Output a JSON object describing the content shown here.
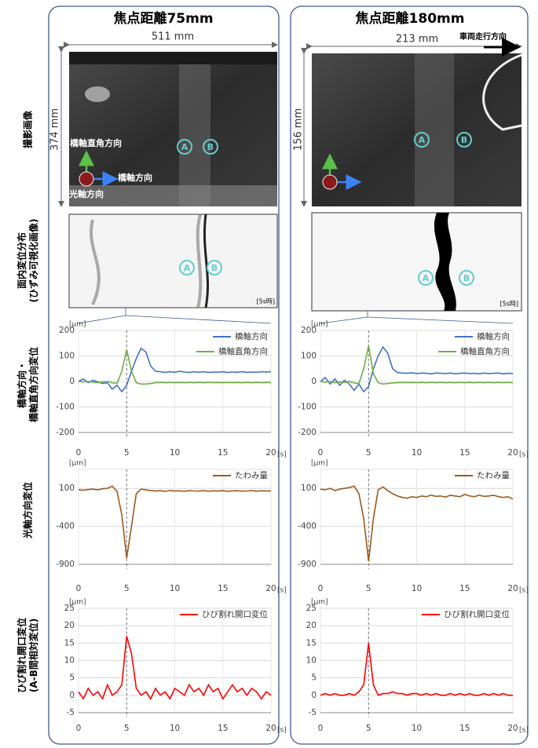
{
  "row_labels": [
    [
      "撮影画像"
    ],
    [
      "面内変位分布",
      "(ひずみ可視化画像)"
    ],
    [
      "橋軸方向・",
      "橋軸直角方向変位"
    ],
    [
      "光軸方向変位"
    ],
    [
      "ひび割れ開口変位",
      "(A-B間相対変位)"
    ]
  ],
  "columns": [
    {
      "title": "焦点距離75mm",
      "photo": {
        "width_label": "511 mm",
        "height_label": "374 mm",
        "direction_labels": [
          "橋軸直角方向",
          "橋軸方向",
          "光軸方向"
        ],
        "point_labels": [
          "A",
          "B"
        ]
      },
      "contour": {
        "point_labels": [
          "A",
          "B"
        ],
        "time_label": "[5s時]"
      },
      "chart_data": [
        {
          "type": "line",
          "x_unit": "[s]",
          "y_unit": "[μm]",
          "xlim": [
            0,
            20
          ],
          "xticks": [
            0,
            5,
            10,
            15,
            20
          ],
          "ylim": [
            -200,
            200
          ],
          "yticks": [
            -200,
            -100,
            0,
            100,
            200
          ],
          "grid": true,
          "marker_x": 5,
          "x": [
            0,
            0.5,
            1,
            1.5,
            2,
            2.5,
            3,
            3.5,
            4,
            4.5,
            5,
            5.5,
            6,
            6.5,
            7,
            7.5,
            8,
            8.5,
            9,
            9.5,
            10,
            10.5,
            11,
            11.5,
            12,
            12.5,
            13,
            13.5,
            14,
            14.5,
            15,
            15.5,
            16,
            16.5,
            17,
            17.5,
            18,
            18.5,
            19,
            19.5,
            20
          ],
          "series": [
            {
              "name": "橋軸方向",
              "color": "#4472c4",
              "values": [
                0,
                10,
                -5,
                5,
                -2,
                -8,
                -5,
                -30,
                -15,
                -40,
                -15,
                40,
                90,
                130,
                115,
                60,
                40,
                38,
                35,
                38,
                36,
                40,
                37,
                35,
                38,
                36,
                38,
                35,
                37,
                36,
                38,
                35,
                37,
                36,
                38,
                35,
                37,
                36,
                38,
                37,
                38
              ]
            },
            {
              "name": "橋軸直角方向",
              "color": "#70ad47",
              "values": [
                0,
                -2,
                0,
                -3,
                -5,
                -2,
                0,
                -5,
                -8,
                40,
                125,
                40,
                -5,
                -10,
                -10,
                -8,
                -5,
                -4,
                -5,
                -4,
                -5,
                -4,
                -5,
                -4,
                -5,
                -4,
                -5,
                -4,
                -5,
                -4,
                -5,
                -4,
                -5,
                -4,
                -5,
                -4,
                -5,
                -4,
                -5,
                -4,
                -5
              ]
            }
          ]
        },
        {
          "type": "line",
          "x_unit": "[s]",
          "y_unit": "[μm]",
          "xlim": [
            0,
            20
          ],
          "xticks": [
            0,
            5,
            10,
            15,
            20
          ],
          "ylim": [
            -900,
            350
          ],
          "yticks": [
            -900,
            -400,
            100
          ],
          "grid": true,
          "marker_x": 5,
          "x": [
            0,
            0.5,
            1,
            1.5,
            2,
            2.5,
            3,
            3.5,
            4,
            4.5,
            5,
            5.5,
            6,
            6.5,
            7,
            7.5,
            8,
            8.5,
            9,
            9.5,
            10,
            10.5,
            11,
            11.5,
            12,
            12.5,
            13,
            13.5,
            14,
            14.5,
            15,
            15.5,
            16,
            16.5,
            17,
            17.5,
            18,
            18.5,
            19,
            19.5,
            20
          ],
          "series": [
            {
              "name": "たわみ量",
              "color": "#9c5a1e",
              "values": [
                80,
                75,
                85,
                90,
                80,
                95,
                100,
                130,
                60,
                -250,
                -820,
                -400,
                30,
                90,
                80,
                70,
                65,
                70,
                60,
                72,
                65,
                68,
                62,
                70,
                66,
                64,
                70,
                63,
                68,
                65,
                70,
                62,
                67,
                69,
                64,
                66,
                70,
                63,
                68,
                65,
                67
              ]
            }
          ]
        },
        {
          "type": "line",
          "x_unit": "[s]",
          "y_unit": "[μm]",
          "xlim": [
            0,
            20
          ],
          "xticks": [
            0,
            5,
            10,
            15,
            20
          ],
          "ylim": [
            -5,
            25
          ],
          "yticks": [
            -5,
            0,
            5,
            10,
            15,
            20,
            25
          ],
          "grid": true,
          "marker_x": 5,
          "x": [
            0,
            0.5,
            1,
            1.5,
            2,
            2.5,
            3,
            3.5,
            4,
            4.5,
            5,
            5.5,
            6,
            6.5,
            7,
            7.5,
            8,
            8.5,
            9,
            9.5,
            10,
            10.5,
            11,
            11.5,
            12,
            12.5,
            13,
            13.5,
            14,
            14.5,
            15,
            15.5,
            16,
            16.5,
            17,
            17.5,
            18,
            18.5,
            19,
            19.5,
            20
          ],
          "series": [
            {
              "name": "ひび割れ開口変位",
              "color": "#ff0000",
              "values": [
                1,
                -1,
                2,
                0,
                1,
                -1,
                3,
                0,
                1,
                3,
                17,
                12,
                2,
                0,
                1,
                -1,
                2,
                0,
                1,
                -1,
                2,
                1,
                0,
                3,
                1,
                2,
                0,
                3,
                1,
                2,
                -1,
                1,
                3,
                1,
                2,
                0,
                2,
                1,
                -1,
                1,
                0
              ]
            }
          ]
        }
      ]
    },
    {
      "title": "焦点距離180mm",
      "photo": {
        "width_label": "213 mm",
        "height_label": "156 mm",
        "direction_labels": [
          "車両走行方向"
        ],
        "point_labels": [
          "A",
          "B"
        ]
      },
      "contour": {
        "point_labels": [
          "A",
          "B"
        ],
        "time_label": "[5s時]"
      },
      "chart_data": [
        {
          "type": "line",
          "x_unit": "[s]",
          "y_unit": "[μm]",
          "xlim": [
            0,
            20
          ],
          "xticks": [
            0,
            5,
            10,
            15,
            20
          ],
          "ylim": [
            -200,
            200
          ],
          "yticks": [
            -200,
            -100,
            0,
            100,
            200
          ],
          "grid": true,
          "marker_x": 5,
          "x": [
            0,
            0.5,
            1,
            1.5,
            2,
            2.5,
            3,
            3.5,
            4,
            4.5,
            5,
            5.5,
            6,
            6.5,
            7,
            7.5,
            8,
            8.5,
            9,
            9.5,
            10,
            10.5,
            11,
            11.5,
            12,
            12.5,
            13,
            13.5,
            14,
            14.5,
            15,
            15.5,
            16,
            16.5,
            17,
            17.5,
            18,
            18.5,
            19,
            19.5,
            20
          ],
          "series": [
            {
              "name": "橋軸方向",
              "color": "#4472c4",
              "values": [
                0,
                15,
                -10,
                10,
                -15,
                5,
                -10,
                -35,
                -10,
                -40,
                -20,
                50,
                100,
                135,
                110,
                50,
                35,
                33,
                32,
                34,
                31,
                33,
                32,
                30,
                33,
                32,
                31,
                33,
                30,
                32,
                33,
                31,
                32,
                30,
                33,
                31,
                32,
                33,
                30,
                32,
                31
              ]
            },
            {
              "name": "橋軸直角方向",
              "color": "#70ad47",
              "values": [
                0,
                -3,
                0,
                -5,
                -2,
                -4,
                0,
                -6,
                -8,
                50,
                140,
                30,
                -5,
                -10,
                -8,
                -6,
                -5,
                -4,
                -5,
                -4,
                -5,
                -4,
                -5,
                -4,
                -5,
                -4,
                -5,
                -4,
                -5,
                -4,
                -5,
                -4,
                -5,
                -4,
                -5,
                -4,
                -5,
                -4,
                -5,
                -4,
                -5
              ]
            }
          ]
        },
        {
          "type": "line",
          "x_unit": "[s]",
          "y_unit": "[μm]",
          "xlim": [
            0,
            20
          ],
          "xticks": [
            0,
            5,
            10,
            15,
            20
          ],
          "ylim": [
            -900,
            350
          ],
          "yticks": [
            -900,
            -400,
            100
          ],
          "grid": true,
          "marker_x": 5,
          "x": [
            0,
            0.5,
            1,
            1.5,
            2,
            2.5,
            3,
            3.5,
            4,
            4.5,
            5,
            5.5,
            6,
            6.5,
            7,
            7.5,
            8,
            8.5,
            9,
            9.5,
            10,
            10.5,
            11,
            11.5,
            12,
            12.5,
            13,
            13.5,
            14,
            14.5,
            15,
            15.5,
            16,
            16.5,
            17,
            17.5,
            18,
            18.5,
            19,
            19.5,
            20
          ],
          "series": [
            {
              "name": "たわみ量",
              "color": "#9c5a1e",
              "values": [
                90,
                80,
                100,
                70,
                90,
                100,
                110,
                130,
                30,
                -300,
                -860,
                -300,
                80,
                120,
                70,
                30,
                0,
                -20,
                -30,
                -10,
                -20,
                0,
                -10,
                10,
                -5,
                0,
                -15,
                10,
                0,
                -10,
                20,
                0,
                -10,
                10,
                -5,
                0,
                10,
                -10,
                -20,
                -10,
                -40
              ]
            }
          ]
        },
        {
          "type": "line",
          "x_unit": "[s]",
          "y_unit": "[μm]",
          "xlim": [
            0,
            20
          ],
          "xticks": [
            0,
            5,
            10,
            15,
            20
          ],
          "ylim": [
            -5,
            25
          ],
          "yticks": [
            -5,
            0,
            5,
            10,
            15,
            20,
            25
          ],
          "grid": true,
          "marker_x": 5,
          "x": [
            0,
            0.5,
            1,
            1.5,
            2,
            2.5,
            3,
            3.5,
            4,
            4.5,
            5,
            5.5,
            6,
            6.5,
            7,
            7.5,
            8,
            8.5,
            9,
            9.5,
            10,
            10.5,
            11,
            11.5,
            12,
            12.5,
            13,
            13.5,
            14,
            14.5,
            15,
            15.5,
            16,
            16.5,
            17,
            17.5,
            18,
            18.5,
            19,
            19.5,
            20
          ],
          "series": [
            {
              "name": "ひび割れ開口変位",
              "color": "#ff0000",
              "values": [
                0,
                0.5,
                0,
                0.5,
                0,
                0,
                0.5,
                0,
                1,
                3,
                15,
                3,
                0,
                0.5,
                0.5,
                1,
                0.5,
                0.5,
                0,
                0.5,
                0.5,
                0,
                0.5,
                0,
                0.5,
                0,
                0,
                0.5,
                0,
                0.5,
                0,
                0.5,
                0,
                0,
                0.5,
                0,
                0.5,
                0,
                0.5,
                0,
                0
              ]
            }
          ]
        }
      ]
    }
  ]
}
